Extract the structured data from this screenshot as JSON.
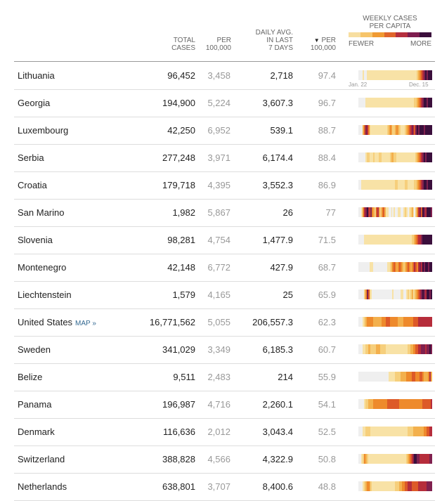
{
  "header": {
    "total_cases_l1": "TOTAL",
    "total_cases_l2": "CASES",
    "per_l1": "PER",
    "per_l2": "100,000",
    "daily_l1": "DAILY AVG.",
    "daily_l2": "IN LAST",
    "daily_l3": "7 DAYS",
    "per2_arrow": "▼",
    "per2_l1": "PER",
    "per2_l2": "100,000"
  },
  "legend": {
    "title_l1": "WEEKLY CASES",
    "title_l2": "PER CAPITA",
    "fewer": "FEWER",
    "more": "MORE",
    "colors": [
      "#f7dea0",
      "#f6c46a",
      "#f09a32",
      "#e0652b",
      "#b52f3e",
      "#7e1d4f",
      "#3b0f3c"
    ]
  },
  "axis": {
    "start": "Jan. 22",
    "end": "Dec. 15"
  },
  "map_link": "MAP »",
  "palette": [
    "#efefef",
    "#f8e2a6",
    "#f6cf7c",
    "#f3b04d",
    "#ee8a2c",
    "#dd5a28",
    "#b62d3b",
    "#80204e",
    "#3b0f3c"
  ],
  "rows": [
    {
      "name": "Lithuania",
      "total": "96,452",
      "per": "3,458",
      "daily": "2,718",
      "per2": "97.4",
      "map": false,
      "spark": [
        0,
        0,
        0,
        1,
        0,
        0,
        1,
        1,
        1,
        1,
        1,
        1,
        1,
        1,
        1,
        1,
        1,
        1,
        1,
        1,
        1,
        1,
        1,
        1,
        1,
        1,
        1,
        1,
        1,
        1,
        1,
        1,
        1,
        1,
        1,
        1,
        1,
        1,
        1,
        1,
        1,
        1,
        1,
        2,
        3,
        4,
        5,
        6,
        7,
        8,
        7,
        8,
        8,
        8
      ]
    },
    {
      "name": "Georgia",
      "total": "194,900",
      "per": "5,224",
      "daily": "3,607.3",
      "per2": "96.7",
      "map": false,
      "spark": [
        0,
        0,
        0,
        0,
        0,
        1,
        1,
        1,
        1,
        1,
        1,
        1,
        1,
        1,
        1,
        1,
        1,
        1,
        1,
        1,
        1,
        1,
        1,
        1,
        1,
        1,
        1,
        1,
        1,
        1,
        1,
        1,
        1,
        1,
        1,
        1,
        1,
        1,
        1,
        1,
        1,
        2,
        2,
        3,
        4,
        5,
        6,
        7,
        8,
        8,
        7,
        8,
        8,
        8
      ]
    },
    {
      "name": "Luxembourg",
      "total": "42,250",
      "per": "6,952",
      "daily": "539.1",
      "per2": "88.7",
      "map": false,
      "spark": [
        0,
        0,
        0,
        3,
        5,
        7,
        6,
        4,
        2,
        1,
        1,
        1,
        1,
        1,
        1,
        1,
        1,
        1,
        1,
        1,
        1,
        2,
        3,
        4,
        3,
        2,
        2,
        3,
        4,
        3,
        2,
        1,
        1,
        1,
        2,
        3,
        4,
        5,
        6,
        7,
        6,
        5,
        7,
        8,
        7,
        8,
        8,
        8,
        7,
        8,
        8,
        8,
        8,
        8
      ]
    },
    {
      "name": "Serbia",
      "total": "277,248",
      "per": "3,971",
      "daily": "6,174.4",
      "per2": "88.4",
      "map": false,
      "spark": [
        0,
        0,
        0,
        0,
        0,
        1,
        2,
        2,
        1,
        1,
        1,
        2,
        1,
        1,
        1,
        2,
        2,
        1,
        1,
        1,
        1,
        1,
        1,
        2,
        3,
        3,
        2,
        2,
        1,
        1,
        1,
        1,
        1,
        1,
        1,
        1,
        1,
        1,
        1,
        1,
        1,
        1,
        2,
        3,
        4,
        5,
        6,
        7,
        8,
        7,
        8,
        8,
        8,
        8
      ]
    },
    {
      "name": "Croatia",
      "total": "179,718",
      "per": "4,395",
      "daily": "3,552.3",
      "per2": "86.9",
      "map": false,
      "spark": [
        0,
        0,
        1,
        1,
        1,
        1,
        1,
        1,
        1,
        1,
        1,
        1,
        1,
        1,
        1,
        1,
        1,
        1,
        1,
        1,
        1,
        1,
        1,
        1,
        1,
        1,
        1,
        2,
        2,
        1,
        1,
        1,
        1,
        1,
        2,
        2,
        1,
        1,
        1,
        1,
        1,
        2,
        2,
        3,
        4,
        5,
        6,
        7,
        8,
        8,
        7,
        8,
        8,
        8
      ]
    },
    {
      "name": "San Marino",
      "total": "1,982",
      "per": "5,867",
      "daily": "26",
      "per2": "77",
      "map": false,
      "spark": [
        0,
        0,
        1,
        4,
        6,
        7,
        8,
        6,
        5,
        7,
        4,
        3,
        2,
        5,
        6,
        3,
        2,
        4,
        5,
        3,
        1,
        1,
        0,
        0,
        1,
        0,
        1,
        0,
        0,
        1,
        1,
        0,
        0,
        1,
        2,
        1,
        0,
        1,
        2,
        3,
        1,
        0,
        2,
        4,
        6,
        7,
        5,
        8,
        7,
        6,
        8,
        8,
        8,
        7
      ]
    },
    {
      "name": "Slovenia",
      "total": "98,281",
      "per": "4,754",
      "daily": "1,477.9",
      "per2": "71.5",
      "map": false,
      "spark": [
        0,
        0,
        0,
        0,
        1,
        1,
        1,
        1,
        1,
        1,
        1,
        1,
        1,
        1,
        1,
        1,
        1,
        1,
        1,
        1,
        1,
        1,
        1,
        1,
        1,
        1,
        1,
        1,
        1,
        1,
        1,
        1,
        1,
        1,
        1,
        1,
        1,
        1,
        1,
        2,
        2,
        3,
        4,
        5,
        6,
        6,
        7,
        8,
        8,
        8,
        8,
        8,
        8,
        8
      ]
    },
    {
      "name": "Montenegro",
      "total": "42,148",
      "per": "6,772",
      "daily": "427.9",
      "per2": "68.7",
      "map": false,
      "spark": [
        0,
        0,
        0,
        0,
        0,
        0,
        0,
        0,
        1,
        1,
        1,
        0,
        0,
        0,
        0,
        0,
        0,
        0,
        0,
        0,
        0,
        1,
        1,
        2,
        3,
        4,
        5,
        4,
        3,
        4,
        5,
        4,
        3,
        2,
        3,
        4,
        5,
        4,
        3,
        4,
        5,
        6,
        5,
        4,
        6,
        7,
        6,
        8,
        7,
        8,
        8,
        7,
        8,
        8
      ]
    },
    {
      "name": "Liechtenstein",
      "total": "1,579",
      "per": "4,165",
      "daily": "25",
      "per2": "65.9",
      "map": false,
      "spark": [
        0,
        0,
        0,
        0,
        2,
        4,
        7,
        5,
        2,
        1,
        0,
        0,
        0,
        0,
        0,
        0,
        0,
        0,
        0,
        0,
        0,
        0,
        0,
        0,
        0,
        1,
        0,
        0,
        0,
        0,
        0,
        1,
        1,
        0,
        0,
        1,
        2,
        1,
        2,
        3,
        1,
        2,
        3,
        4,
        5,
        6,
        7,
        8,
        7,
        6,
        8,
        8,
        7,
        8
      ]
    },
    {
      "name": "United States",
      "total": "16,771,562",
      "per": "5,055",
      "daily": "206,557.3",
      "per2": "62.3",
      "map": true,
      "spark": [
        0,
        0,
        0,
        1,
        2,
        3,
        4,
        4,
        4,
        4,
        4,
        3,
        3,
        3,
        3,
        3,
        3,
        4,
        4,
        4,
        5,
        5,
        5,
        4,
        4,
        4,
        4,
        4,
        4,
        3,
        3,
        3,
        3,
        4,
        4,
        4,
        4,
        4,
        4,
        4,
        5,
        5,
        5,
        5,
        6,
        6,
        6,
        6,
        6,
        6,
        6,
        6,
        6,
        6
      ]
    },
    {
      "name": "Sweden",
      "total": "341,029",
      "per": "3,349",
      "daily": "6,185.3",
      "per2": "60.7",
      "map": false,
      "spark": [
        0,
        0,
        0,
        1,
        1,
        2,
        2,
        3,
        3,
        2,
        2,
        2,
        2,
        3,
        3,
        3,
        2,
        2,
        2,
        2,
        1,
        1,
        1,
        1,
        1,
        1,
        1,
        1,
        1,
        1,
        1,
        1,
        1,
        1,
        1,
        1,
        2,
        2,
        3,
        3,
        4,
        4,
        5,
        5,
        6,
        6,
        7,
        7,
        7,
        6,
        7,
        7,
        8,
        7
      ]
    },
    {
      "name": "Belize",
      "total": "9,511",
      "per": "2,483",
      "daily": "214",
      "per2": "55.9",
      "map": false,
      "spark": [
        0,
        0,
        0,
        0,
        0,
        0,
        0,
        0,
        0,
        0,
        0,
        0,
        0,
        0,
        0,
        0,
        0,
        0,
        0,
        0,
        0,
        0,
        1,
        1,
        1,
        1,
        1,
        2,
        2,
        2,
        2,
        3,
        3,
        3,
        3,
        4,
        4,
        4,
        4,
        5,
        5,
        5,
        4,
        4,
        4,
        5,
        5,
        4,
        3,
        3,
        3,
        4,
        6,
        3
      ]
    },
    {
      "name": "Panama",
      "total": "196,987",
      "per": "4,716",
      "daily": "2,260.1",
      "per2": "54.1",
      "map": false,
      "spark": [
        0,
        0,
        0,
        0,
        1,
        2,
        2,
        3,
        3,
        3,
        3,
        4,
        4,
        4,
        4,
        4,
        4,
        4,
        4,
        4,
        4,
        5,
        5,
        5,
        5,
        5,
        5,
        5,
        5,
        5,
        4,
        4,
        4,
        4,
        4,
        4,
        4,
        4,
        4,
        4,
        4,
        4,
        4,
        4,
        4,
        4,
        4,
        5,
        5,
        5,
        5,
        5,
        5,
        6
      ]
    },
    {
      "name": "Denmark",
      "total": "116,636",
      "per": "2,012",
      "daily": "3,043.4",
      "per2": "52.5",
      "map": false,
      "spark": [
        0,
        0,
        0,
        1,
        1,
        2,
        2,
        2,
        2,
        1,
        1,
        1,
        1,
        1,
        1,
        1,
        1,
        1,
        1,
        1,
        1,
        1,
        1,
        1,
        1,
        1,
        1,
        1,
        1,
        1,
        1,
        1,
        1,
        1,
        1,
        1,
        2,
        2,
        2,
        2,
        3,
        3,
        3,
        3,
        3,
        3,
        3,
        3,
        4,
        4,
        5,
        5,
        6,
        6
      ]
    },
    {
      "name": "Switzerland",
      "total": "388,828",
      "per": "4,566",
      "daily": "4,322.9",
      "per2": "50.8",
      "map": false,
      "spark": [
        0,
        0,
        1,
        2,
        4,
        3,
        2,
        1,
        1,
        1,
        1,
        1,
        1,
        1,
        1,
        1,
        1,
        1,
        1,
        1,
        1,
        1,
        1,
        1,
        1,
        1,
        1,
        1,
        1,
        1,
        1,
        1,
        1,
        1,
        1,
        2,
        3,
        4,
        5,
        6,
        7,
        8,
        8,
        7,
        7,
        6,
        6,
        6,
        6,
        6,
        6,
        6,
        7,
        7
      ]
    },
    {
      "name": "Netherlands",
      "total": "638,801",
      "per": "3,707",
      "daily": "8,400.6",
      "per2": "48.8",
      "map": false,
      "spark": [
        0,
        0,
        0,
        1,
        2,
        3,
        4,
        4,
        3,
        2,
        1,
        1,
        1,
        1,
        1,
        1,
        1,
        1,
        1,
        1,
        1,
        1,
        1,
        1,
        1,
        1,
        1,
        2,
        2,
        2,
        3,
        3,
        4,
        4,
        5,
        5,
        6,
        6,
        6,
        5,
        5,
        5,
        5,
        5,
        6,
        6,
        6,
        6,
        6,
        6,
        7,
        7,
        7,
        7
      ]
    }
  ]
}
